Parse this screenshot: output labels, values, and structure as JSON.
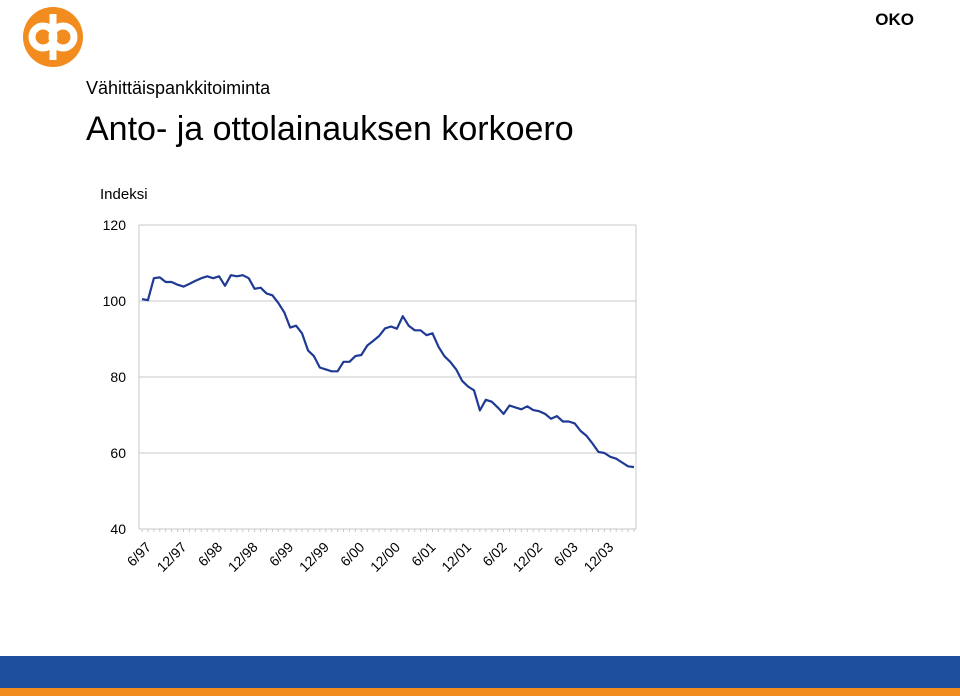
{
  "brand": "OKO",
  "section": "Vähittäispankkitoiminta",
  "chart_data": {
    "type": "line",
    "title": "Anto- ja ottolainauksen korkoero",
    "y_label": "Indeksi",
    "categories": [
      "6/97",
      null,
      null,
      null,
      null,
      null,
      "12/97",
      null,
      null,
      null,
      null,
      null,
      "6/98",
      null,
      null,
      null,
      null,
      null,
      "12/98",
      null,
      null,
      null,
      null,
      null,
      "6/99",
      null,
      null,
      null,
      null,
      null,
      "12/99",
      null,
      null,
      null,
      null,
      null,
      "6/00",
      null,
      null,
      null,
      null,
      null,
      "12/00",
      null,
      null,
      null,
      null,
      null,
      "6/01",
      null,
      null,
      null,
      null,
      null,
      "12/01",
      null,
      null,
      null,
      null,
      null,
      "6/02",
      null,
      null,
      null,
      null,
      null,
      "12/02",
      null,
      null,
      null,
      null,
      null,
      "6/03",
      null,
      null,
      null,
      null,
      null,
      "12/03",
      null,
      null,
      null,
      null,
      null
    ],
    "series": [
      {
        "color": "#1f3a93",
        "values": [
          100.5,
          100.2,
          106,
          106.2,
          105,
          105,
          104.3,
          103.8,
          104.5,
          105.3,
          106,
          106.5,
          106,
          106.5,
          104,
          106.8,
          106.5,
          106.8,
          106,
          103.2,
          103.5,
          102,
          101.5,
          99.5,
          97,
          93,
          93.5,
          91.5,
          87,
          85.5,
          82.5,
          82,
          81.5,
          81.5,
          84,
          84,
          85.5,
          85.8,
          88.3,
          89.5,
          90.8,
          92.8,
          93.3,
          92.7,
          96,
          93.5,
          92.3,
          92.3,
          91,
          91.5,
          88,
          85.5,
          84,
          82,
          79,
          77.5,
          76.5,
          71.2,
          74,
          73.5,
          72,
          70.3,
          72.5,
          72,
          71.5,
          72.3,
          71.3,
          71,
          70.3,
          69,
          69.7,
          68.3,
          68.3,
          67.8,
          65.8,
          64.5,
          62.5,
          60.3,
          60,
          59,
          58.5,
          57.5,
          56.5,
          56.3
        ]
      }
    ],
    "ylim": [
      40,
      120
    ],
    "yticks": [
      40,
      60,
      80,
      100,
      120
    ],
    "grid": true
  }
}
